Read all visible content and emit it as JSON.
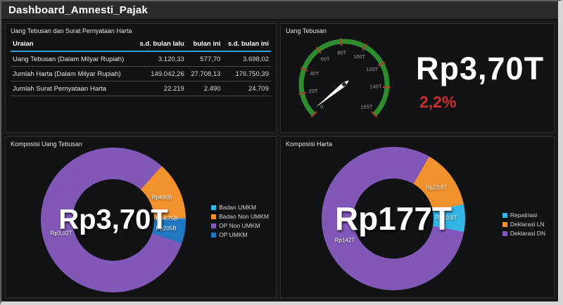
{
  "header": {
    "title": "Dashboard_Amnesti_Pajak"
  },
  "panels": {
    "table_panel": {
      "title": "Uang Tebusan dan Surat Pernyataan Harta",
      "header_underline_color": "#2f9fd8",
      "columns": [
        "Uraian",
        "s.d. bulan lalu",
        "bulan ini",
        "s.d. bulan ini"
      ],
      "rows": [
        {
          "label": "Uang Tebusan (Dalam Milyar Rupiah)",
          "values": [
            "3.120,33",
            "577,70",
            "3.698,02"
          ]
        },
        {
          "label": "Jumlah Harta (Dalam Milyar Rupiah)",
          "values": [
            "149.042,26",
            "27.708,13",
            "176.750,39"
          ]
        },
        {
          "label": "Jumlah Surat Pernyataan Harta",
          "values": [
            "22.219",
            "2.490",
            "24.709"
          ]
        }
      ]
    },
    "gauge_panel": {
      "title": "Uang Tebusan",
      "big_value": "Rp3,70T",
      "percent": "2,2%"
    },
    "donut_tebusan_panel": {
      "title": "Komposisi Uang Tebusan",
      "center_label": "Rp3,70T"
    },
    "donut_harta_panel": {
      "title": "Komposisi Harta",
      "center_label": "Rp177T"
    }
  },
  "chart_data": [
    {
      "type": "gauge",
      "title": "Uang Tebusan",
      "min": 0,
      "max": 165,
      "tick_values": [
        0,
        20,
        40,
        60,
        80,
        100,
        120,
        140,
        165
      ],
      "tick_labels": [
        "0",
        "20T",
        "40T",
        "60T",
        "80T",
        "100T",
        "120T",
        "140T",
        "165T"
      ],
      "value": 3.7,
      "display_value": "Rp3,70T",
      "percent_label": "2,2%",
      "colors": {
        "ring": "#2e8b2e",
        "ticks": "#b53a2e",
        "needle": "#ffffff",
        "labels": "#9a9a9a",
        "value_text": "#ffffff",
        "percent_text": "#c9302c"
      }
    },
    {
      "type": "pie",
      "title": "Komposisi Uang Tebusan",
      "center_label": "Rp3,70T",
      "start_angle": 42,
      "slices": [
        {
          "name": "Badan Non UMKM",
          "label": "Rp480B",
          "value": 0.48,
          "color": "#f2922e"
        },
        {
          "name": "Badan UMKM",
          "label": "Rp4,75B",
          "value": 0.00475,
          "color": "#33b5e5"
        },
        {
          "name": "OP UMKM",
          "label": "Rp205B",
          "value": 0.205,
          "color": "#1f78c1"
        },
        {
          "name": "OP Non UMKM",
          "label": "Rp3,02T",
          "value": 3.02,
          "color": "#8157b8"
        }
      ],
      "legend": [
        {
          "name": "Badan UMKM",
          "color": "#33b5e5"
        },
        {
          "name": "Badan Non UMKM",
          "color": "#f2922e"
        },
        {
          "name": "OP Non UMKM",
          "color": "#8157b8"
        },
        {
          "name": "OP UMKM",
          "color": "#1f78c1"
        }
      ],
      "legend_position": "right"
    },
    {
      "type": "pie",
      "title": "Komposisi Harta",
      "center_label": "Rp177T",
      "start_angle": 30,
      "slices": [
        {
          "name": "Deklarasi LN",
          "label": "Rp23,8T",
          "value": 23.8,
          "color": "#f2922e"
        },
        {
          "name": "Repatriasi",
          "label": "Rp10,9T",
          "value": 10.9,
          "color": "#33b5e5"
        },
        {
          "name": "Deklarasi DN",
          "label": "Rp142T",
          "value": 142,
          "color": "#8157b8"
        }
      ],
      "legend": [
        {
          "name": "Repatriasi",
          "color": "#33b5e5"
        },
        {
          "name": "Deklarasi LN",
          "color": "#f2922e"
        },
        {
          "name": "Deklarasi DN",
          "color": "#8157b8"
        }
      ],
      "legend_position": "right"
    }
  ]
}
